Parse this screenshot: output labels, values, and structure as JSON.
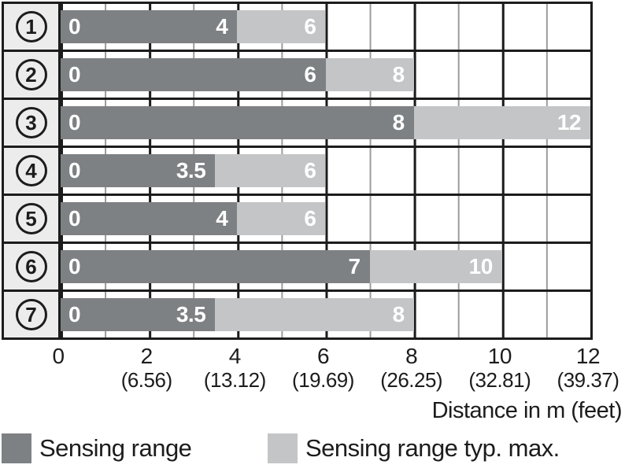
{
  "chart_data": {
    "type": "bar",
    "orientation": "horizontal",
    "title": "",
    "xlabel": "Distance in m (feet)",
    "ylabel": "",
    "xlim": [
      0,
      12
    ],
    "x_major_tick_step": 2,
    "x_minor_tick_step": 1,
    "grid": true,
    "legend_position": "bottom",
    "categories": [
      "1",
      "2",
      "3",
      "4",
      "5",
      "6",
      "7"
    ],
    "series": [
      {
        "name": "Sensing range",
        "color": "#7e8184",
        "values": [
          4,
          6,
          8,
          3.5,
          4,
          7,
          3.5
        ]
      },
      {
        "name": "Sensing range typ. max.",
        "color": "#c3c5c7",
        "values": [
          6,
          8,
          12,
          6,
          6,
          10,
          8
        ]
      }
    ],
    "rows": [
      {
        "num": "1",
        "start_label": "0",
        "range_end": 4,
        "range_end_label": "4",
        "typ_max_end": 6,
        "typ_max_label": "6"
      },
      {
        "num": "2",
        "start_label": "0",
        "range_end": 6,
        "range_end_label": "6",
        "typ_max_end": 8,
        "typ_max_label": "8"
      },
      {
        "num": "3",
        "start_label": "0",
        "range_end": 8,
        "range_end_label": "8",
        "typ_max_end": 12,
        "typ_max_label": "12"
      },
      {
        "num": "4",
        "start_label": "0",
        "range_end": 3.5,
        "range_end_label": "3.5",
        "typ_max_end": 6,
        "typ_max_label": "6"
      },
      {
        "num": "5",
        "start_label": "0",
        "range_end": 4,
        "range_end_label": "4",
        "typ_max_end": 6,
        "typ_max_label": "6"
      },
      {
        "num": "6",
        "start_label": "0",
        "range_end": 7,
        "range_end_label": "7",
        "typ_max_end": 10,
        "typ_max_label": "10"
      },
      {
        "num": "7",
        "start_label": "0",
        "range_end": 3.5,
        "range_end_label": "3.5",
        "typ_max_end": 8,
        "typ_max_label": "8"
      }
    ],
    "ticks": [
      {
        "m": "0",
        "feet": ""
      },
      {
        "m": "2",
        "feet": "(6.56)"
      },
      {
        "m": "4",
        "feet": "(13.12)"
      },
      {
        "m": "6",
        "feet": "(19.69)"
      },
      {
        "m": "8",
        "feet": "(26.25)"
      },
      {
        "m": "10",
        "feet": "(32.81)"
      },
      {
        "m": "12",
        "feet": "(39.37)"
      }
    ],
    "legend": [
      {
        "label": "Sensing range",
        "color": "#7e8184"
      },
      {
        "label": "Sensing range typ. max.",
        "color": "#c3c5c7"
      }
    ],
    "colors": {
      "sensing_range": "#7e8184",
      "typ_max": "#c3c5c7",
      "grid_major": "#1c1c1c",
      "grid_minor": "#9b9b9b",
      "category_cell_bg": "#ececec"
    }
  }
}
